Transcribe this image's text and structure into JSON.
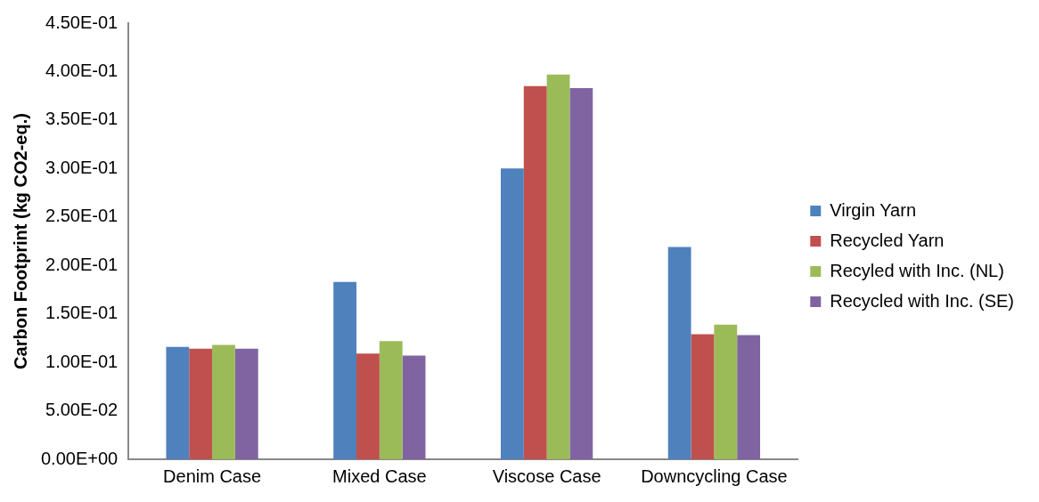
{
  "chart_data": {
    "type": "bar",
    "ylabel": "Carbon Footprint (kg CO2-eq.)",
    "categories": [
      "Denim Case",
      "Mixed Case",
      "Viscose Case",
      "Downcycling Case"
    ],
    "series": [
      {
        "name": "Virgin Yarn",
        "color": "#4f81bd",
        "values": [
          0.116,
          0.183,
          0.3,
          0.219
        ]
      },
      {
        "name": "Recycled Yarn",
        "color": "#c0504d",
        "values": [
          0.114,
          0.109,
          0.385,
          0.129
        ]
      },
      {
        "name": "Recyled with Inc. (NL)",
        "color": "#9bbb59",
        "values": [
          0.118,
          0.122,
          0.397,
          0.139
        ]
      },
      {
        "name": "Recycled with Inc. (SE)",
        "color": "#8064a2",
        "values": [
          0.114,
          0.107,
          0.383,
          0.128
        ]
      }
    ],
    "ylim": [
      0,
      0.45
    ],
    "yticks": [
      {
        "value": 0,
        "label": "0.00E+00"
      },
      {
        "value": 0.05,
        "label": "5.00E-02"
      },
      {
        "value": 0.1,
        "label": "1.00E-01"
      },
      {
        "value": 0.15,
        "label": "1.50E-01"
      },
      {
        "value": 0.2,
        "label": "2.00E-01"
      },
      {
        "value": 0.25,
        "label": "2.50E-01"
      },
      {
        "value": 0.3,
        "label": "3.00E-01"
      },
      {
        "value": 0.35,
        "label": "3.50E-01"
      },
      {
        "value": 0.4,
        "label": "4.00E-01"
      },
      {
        "value": 0.45,
        "label": "4.50E-01"
      }
    ],
    "grid": false,
    "legend": "right"
  }
}
